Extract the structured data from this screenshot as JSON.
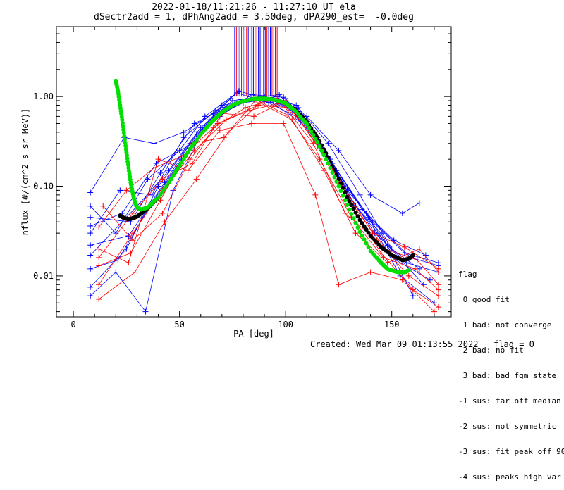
{
  "header": {
    "line1": "2022-01-18/11:21:26 - 11:27:10 UT ela",
    "line2": "dSectr2add = 1, dPhAng2add = 3.50deg, dPA290_est=  -0.0deg"
  },
  "flag_legend": {
    "title": "flag",
    "items": [
      " 0 good fit",
      " 1 bad: not converge",
      " 2 bad: no fit",
      " 3 bad: bad fgm state",
      "-1 sus: far off median",
      "-2 sus: not symmetric",
      "-3 sus: fit peak off 90",
      "-4 sus: peaks high var"
    ]
  },
  "footer": {
    "created": "Created: Wed Mar 09 01:13:55 2022",
    "flag": "flag = 0"
  },
  "chart_data": {
    "type": "line",
    "xlabel": "PA [deg]",
    "ylabel": "nflux [#/(cm^2 s sr MeV)]",
    "xlim": [
      -8,
      178
    ],
    "ylim": [
      0.0035,
      6.0
    ],
    "yscale": "log",
    "x_ticks": [
      0,
      50,
      100,
      150
    ],
    "y_ticks": [
      {
        "value": 0.01,
        "label": "0.01"
      },
      {
        "value": 0.1,
        "label": "0.10"
      },
      {
        "value": 1.0,
        "label": "1.00"
      }
    ],
    "colors": {
      "blue": "#0000ff",
      "red": "#ff0000",
      "black": "#000000",
      "green": "#00e000"
    },
    "observed_blue": [
      [
        [
          8,
          0.017
        ],
        [
          30,
          0.06
        ],
        [
          45,
          0.15
        ],
        [
          60,
          0.45
        ],
        [
          75,
          0.9
        ],
        [
          90,
          1.0
        ],
        [
          105,
          0.8
        ],
        [
          120,
          0.3
        ],
        [
          135,
          0.08
        ],
        [
          150,
          0.02
        ],
        [
          163,
          0.012
        ]
      ],
      [
        [
          8,
          0.06
        ],
        [
          20,
          0.03
        ],
        [
          35,
          0.12
        ],
        [
          50,
          0.25
        ],
        [
          62,
          0.6
        ],
        [
          77,
          1.1
        ],
        [
          92,
          0.85
        ],
        [
          108,
          0.55
        ],
        [
          122,
          0.18
        ],
        [
          138,
          0.05
        ],
        [
          152,
          0.015
        ],
        [
          168,
          0.009
        ]
      ],
      [
        [
          8,
          0.03
        ],
        [
          22,
          0.09
        ],
        [
          37,
          0.08
        ],
        [
          52,
          0.35
        ],
        [
          67,
          0.7
        ],
        [
          82,
          0.95
        ],
        [
          97,
          1.05
        ],
        [
          112,
          0.4
        ],
        [
          127,
          0.1
        ],
        [
          142,
          0.03
        ],
        [
          157,
          0.014
        ],
        [
          172,
          0.011
        ]
      ],
      [
        [
          8,
          0.0075
        ],
        [
          25,
          0.02
        ],
        [
          40,
          0.1
        ],
        [
          55,
          0.3
        ],
        [
          70,
          0.8
        ],
        [
          85,
          0.9
        ],
        [
          100,
          0.95
        ],
        [
          115,
          0.35
        ],
        [
          130,
          0.07
        ],
        [
          145,
          0.03
        ],
        [
          160,
          0.006
        ]
      ],
      [
        [
          8,
          0.085
        ],
        [
          24,
          0.35
        ],
        [
          38,
          0.3
        ],
        [
          52,
          0.4
        ],
        [
          66,
          0.65
        ],
        [
          78,
          1.15
        ],
        [
          94,
          0.9
        ],
        [
          110,
          0.6
        ],
        [
          125,
          0.25
        ],
        [
          140,
          0.08
        ],
        [
          155,
          0.05
        ],
        [
          163,
          0.065
        ]
      ],
      [
        [
          8,
          0.045
        ],
        [
          27,
          0.04
        ],
        [
          41,
          0.14
        ],
        [
          57,
          0.5
        ],
        [
          72,
          0.75
        ],
        [
          88,
          0.98
        ],
        [
          103,
          0.7
        ],
        [
          118,
          0.25
        ],
        [
          133,
          0.06
        ],
        [
          148,
          0.022
        ],
        [
          165,
          0.008
        ]
      ],
      [
        [
          8,
          0.012
        ],
        [
          21,
          0.015
        ],
        [
          36,
          0.06
        ],
        [
          51,
          0.2
        ],
        [
          64,
          0.55
        ],
        [
          80,
          0.85
        ],
        [
          96,
          1.0
        ],
        [
          111,
          0.45
        ],
        [
          126,
          0.12
        ],
        [
          141,
          0.04
        ],
        [
          156,
          0.018
        ],
        [
          172,
          0.014
        ]
      ],
      [
        [
          8,
          0.022
        ],
        [
          26,
          0.028
        ],
        [
          43,
          0.11
        ],
        [
          58,
          0.38
        ],
        [
          74,
          0.95
        ],
        [
          90,
          0.88
        ],
        [
          106,
          0.75
        ],
        [
          121,
          0.2
        ],
        [
          136,
          0.055
        ],
        [
          151,
          0.025
        ],
        [
          166,
          0.017
        ]
      ],
      [
        [
          8,
          0.006
        ],
        [
          20,
          0.011
        ],
        [
          34,
          0.004
        ],
        [
          47,
          0.09
        ],
        [
          61,
          0.42
        ],
        [
          76,
          0.82
        ],
        [
          91,
          0.93
        ],
        [
          107,
          0.52
        ],
        [
          124,
          0.15
        ],
        [
          139,
          0.045
        ],
        [
          154,
          0.01
        ],
        [
          170,
          0.005
        ]
      ],
      [
        [
          8,
          0.036
        ],
        [
          23,
          0.05
        ],
        [
          39,
          0.18
        ],
        [
          54,
          0.28
        ],
        [
          69,
          0.6
        ],
        [
          84,
          1.05
        ],
        [
          99,
          0.98
        ],
        [
          114,
          0.38
        ],
        [
          129,
          0.09
        ],
        [
          144,
          0.035
        ],
        [
          159,
          0.016
        ],
        [
          172,
          0.013
        ]
      ]
    ],
    "observed_red": [
      [
        [
          12,
          0.008
        ],
        [
          28,
          0.03
        ],
        [
          42,
          0.09
        ],
        [
          57,
          0.25
        ],
        [
          72,
          0.55
        ],
        [
          87,
          0.8
        ],
        [
          102,
          0.75
        ],
        [
          117,
          0.25
        ],
        [
          132,
          0.06
        ],
        [
          147,
          0.02
        ],
        [
          162,
          0.015
        ],
        [
          172,
          0.008
        ]
      ],
      [
        [
          14,
          0.06
        ],
        [
          28,
          0.025
        ],
        [
          42,
          0.05
        ],
        [
          55,
          0.2
        ],
        [
          68,
          0.5
        ],
        [
          83,
          0.7
        ],
        [
          98,
          0.85
        ],
        [
          113,
          0.3
        ],
        [
          128,
          0.05
        ],
        [
          143,
          0.025
        ],
        [
          158,
          0.01
        ],
        [
          172,
          0.006
        ]
      ],
      [
        [
          12,
          0.02
        ],
        [
          26,
          0.014
        ],
        [
          40,
          0.2
        ],
        [
          54,
          0.15
        ],
        [
          69,
          0.42
        ],
        [
          84,
          0.5
        ],
        [
          99,
          0.5
        ],
        [
          114,
          0.08
        ],
        [
          125,
          0.008
        ],
        [
          140,
          0.011
        ],
        [
          155,
          0.009
        ],
        [
          170,
          0.004
        ]
      ],
      [
        [
          12,
          0.013
        ],
        [
          27,
          0.018
        ],
        [
          41,
          0.07
        ],
        [
          56,
          0.3
        ],
        [
          71,
          0.35
        ],
        [
          86,
          0.92
        ],
        [
          101,
          0.62
        ],
        [
          116,
          0.2
        ],
        [
          131,
          0.045
        ],
        [
          146,
          0.016
        ],
        [
          161,
          0.012
        ],
        [
          172,
          0.007
        ]
      ],
      [
        [
          12,
          0.0055
        ],
        [
          29,
          0.011
        ],
        [
          43,
          0.04
        ],
        [
          58,
          0.12
        ],
        [
          73,
          0.4
        ],
        [
          88,
          0.85
        ],
        [
          103,
          0.55
        ],
        [
          118,
          0.15
        ],
        [
          133,
          0.03
        ],
        [
          148,
          0.014
        ],
        [
          163,
          0.02
        ],
        [
          172,
          0.011
        ]
      ],
      [
        [
          12,
          0.035
        ],
        [
          25,
          0.09
        ],
        [
          38,
          0.16
        ],
        [
          52,
          0.22
        ],
        [
          66,
          0.45
        ],
        [
          81,
          0.75
        ],
        [
          96,
          0.95
        ],
        [
          111,
          0.42
        ],
        [
          126,
          0.11
        ],
        [
          141,
          0.03
        ],
        [
          156,
          0.021
        ],
        [
          172,
          0.012
        ]
      ],
      [
        [
          12,
          0.016
        ],
        [
          28,
          0.05
        ],
        [
          42,
          0.12
        ],
        [
          56,
          0.18
        ],
        [
          70,
          0.65
        ],
        [
          85,
          0.6
        ],
        [
          100,
          0.9
        ],
        [
          115,
          0.28
        ],
        [
          130,
          0.065
        ],
        [
          145,
          0.018
        ],
        [
          160,
          0.007
        ],
        [
          172,
          0.0045
        ]
      ]
    ],
    "fit_black": [
      [
        22,
        0.047
      ],
      [
        24,
        0.044
      ],
      [
        26,
        0.043
      ],
      [
        28,
        0.044
      ],
      [
        30,
        0.046
      ],
      [
        33,
        0.052
      ],
      [
        36,
        0.06
      ],
      [
        40,
        0.075
      ],
      [
        45,
        0.11
      ],
      [
        50,
        0.17
      ],
      [
        55,
        0.26
      ],
      [
        60,
        0.38
      ],
      [
        65,
        0.52
      ],
      [
        70,
        0.67
      ],
      [
        75,
        0.8
      ],
      [
        80,
        0.89
      ],
      [
        85,
        0.94
      ],
      [
        90,
        0.95
      ],
      [
        95,
        0.92
      ],
      [
        100,
        0.84
      ],
      [
        105,
        0.7
      ],
      [
        110,
        0.52
      ],
      [
        115,
        0.35
      ],
      [
        120,
        0.21
      ],
      [
        125,
        0.12
      ],
      [
        130,
        0.068
      ],
      [
        135,
        0.042
      ],
      [
        140,
        0.028
      ],
      [
        145,
        0.021
      ],
      [
        150,
        0.017
      ],
      [
        155,
        0.015
      ],
      [
        158,
        0.0155
      ],
      [
        160,
        0.017
      ]
    ],
    "fit_green": [
      [
        20,
        1.5
      ],
      [
        21,
        1.15
      ],
      [
        22,
        0.8
      ],
      [
        23,
        0.55
      ],
      [
        24,
        0.36
      ],
      [
        25,
        0.24
      ],
      [
        26,
        0.16
      ],
      [
        27,
        0.11
      ],
      [
        28,
        0.083
      ],
      [
        29,
        0.066
      ],
      [
        30,
        0.058
      ],
      [
        32,
        0.055
      ],
      [
        35,
        0.058
      ],
      [
        40,
        0.075
      ],
      [
        45,
        0.11
      ],
      [
        50,
        0.17
      ],
      [
        55,
        0.26
      ],
      [
        60,
        0.38
      ],
      [
        65,
        0.52
      ],
      [
        70,
        0.67
      ],
      [
        75,
        0.8
      ],
      [
        80,
        0.89
      ],
      [
        85,
        0.94
      ],
      [
        90,
        0.95
      ],
      [
        95,
        0.92
      ],
      [
        100,
        0.84
      ],
      [
        105,
        0.68
      ],
      [
        110,
        0.49
      ],
      [
        115,
        0.31
      ],
      [
        120,
        0.18
      ],
      [
        125,
        0.1
      ],
      [
        130,
        0.055
      ],
      [
        135,
        0.031
      ],
      [
        140,
        0.019
      ],
      [
        145,
        0.014
      ],
      [
        148,
        0.012
      ],
      [
        150,
        0.0115
      ],
      [
        153,
        0.011
      ],
      [
        156,
        0.011
      ],
      [
        158,
        0.0115
      ]
    ]
  }
}
